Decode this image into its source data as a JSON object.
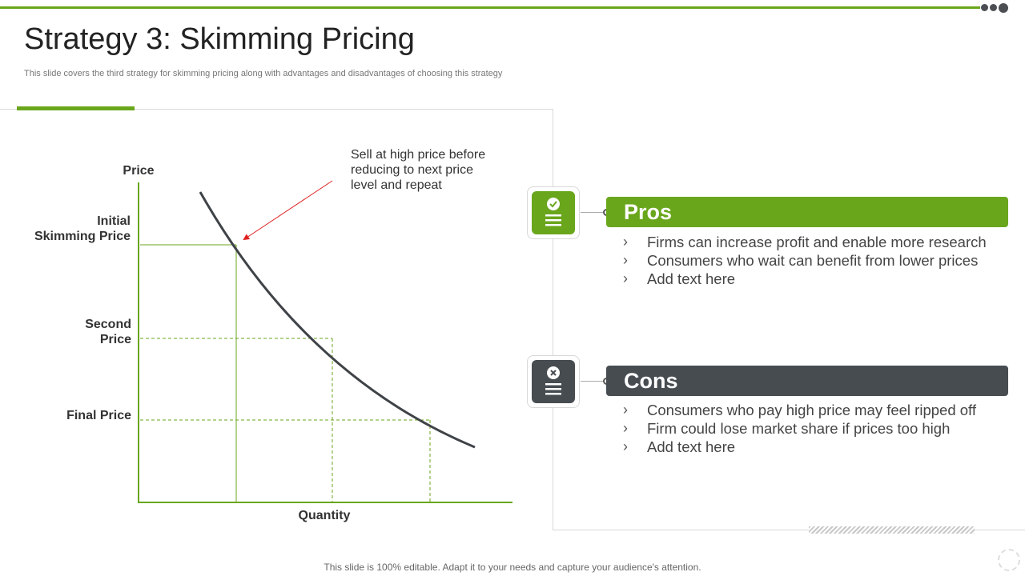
{
  "header": {
    "title": "Strategy 3: Skimming Pricing",
    "subtitle": "This slide covers the third strategy for  skimming pricing along with advantages and disadvantages of choosing this strategy"
  },
  "diagram": {
    "y_axis_label": "Price",
    "x_axis_label": "Quantity",
    "price_levels": [
      {
        "lines": [
          "Initial",
          "Skimming Price"
        ]
      },
      {
        "lines": [
          "Second",
          "Price"
        ]
      },
      {
        "lines": [
          "Final Price"
        ]
      }
    ],
    "annotation_lines": [
      "Sell at high price before",
      "reducing to next price",
      "level and repeat"
    ],
    "colors": {
      "axis": "#6aa61c",
      "curve": "#3f4347",
      "arrow": "#e02020",
      "guide": "#6aa61c"
    }
  },
  "pros": {
    "title": "Pros",
    "icon": "check-list-icon",
    "color": "#6aa61c",
    "items": [
      "Firms can increase profit and enable more research",
      "Consumers who wait can benefit from lower prices",
      "Add text here"
    ]
  },
  "cons": {
    "title": "Cons",
    "icon": "cross-list-icon",
    "color": "#474c51",
    "items": [
      "Consumers who pay high price may feel ripped off",
      "Firm could lose market share if prices too high",
      "Add text here"
    ]
  },
  "bullet_glyph": "›",
  "footer": "This slide is 100% editable. Adapt it to your needs and capture your audience's attention."
}
